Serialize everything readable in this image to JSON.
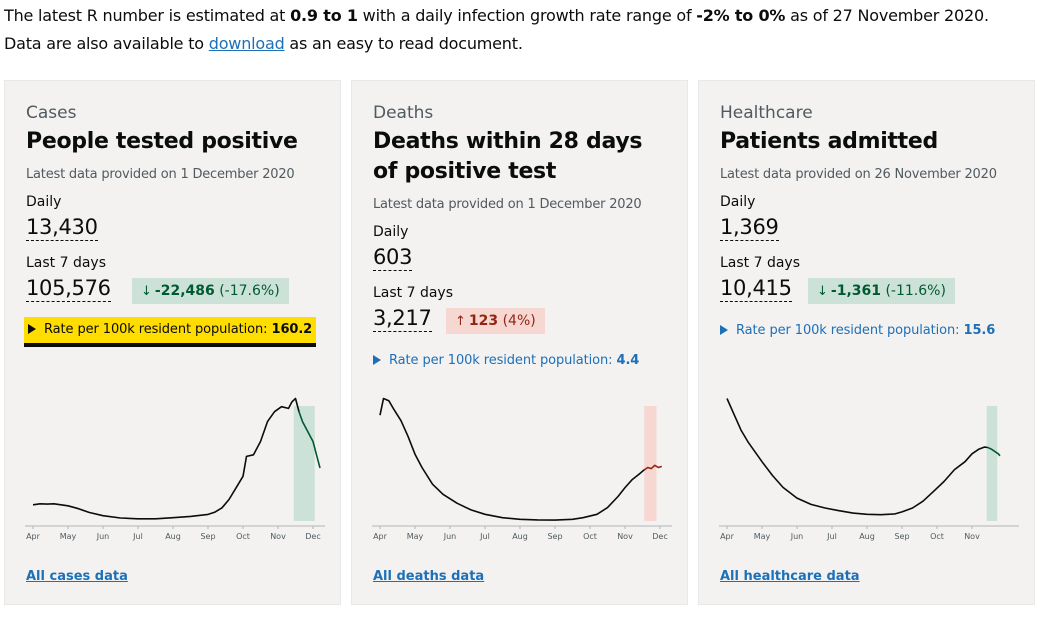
{
  "intro": {
    "line1_pre": "The latest R number is estimated at ",
    "r_value": "0.9 to 1",
    "line1_mid": " with a daily infection growth rate range of ",
    "growth_value": "-2% to 0%",
    "line1_post": " as of 27 November 2020.",
    "line2_pre": "Data are also available to ",
    "download_link": "download",
    "line2_post": " as an easy to read document."
  },
  "cards": [
    {
      "category": "Cases",
      "heading": "People tested positive",
      "latest": "Latest data provided on 1 December 2020",
      "daily_label": "Daily",
      "daily_value": "13,430",
      "week_label": "Last 7 days",
      "week_value": "105,576",
      "change_direction": "down",
      "change_arrow": "↓",
      "change_value": "-22,486",
      "change_pct": "(-17.6%)",
      "rate_label": "Rate per 100k resident population: ",
      "rate_value": "160.2",
      "footer_link": "All cases data",
      "line_color": "#0b0c0c",
      "recent_color": "#005a30",
      "band_color": "#cce2d8"
    },
    {
      "category": "Deaths",
      "heading": "Deaths within 28 days of positive test",
      "latest": "Latest data provided on 1 December 2020",
      "daily_label": "Daily",
      "daily_value": "603",
      "week_label": "Last 7 days",
      "week_value": "3,217",
      "change_direction": "up",
      "change_arrow": "↑",
      "change_value": "123",
      "change_pct": "(4%)",
      "rate_label": "Rate per 100k resident population: ",
      "rate_value": "4.4",
      "footer_link": "All deaths data",
      "line_color": "#0b0c0c",
      "recent_color": "#942514",
      "band_color": "#f6d7d2"
    },
    {
      "category": "Healthcare",
      "heading": "Patients admitted",
      "latest": "Latest data provided on 26 November 2020",
      "daily_label": "Daily",
      "daily_value": "1,369",
      "week_label": "Last 7 days",
      "week_value": "10,415",
      "change_direction": "down",
      "change_arrow": "↓",
      "change_value": "-1,361",
      "change_pct": "(-11.6%)",
      "rate_label": "Rate per 100k resident population: ",
      "rate_value": "15.6",
      "footer_link": "All healthcare data",
      "line_color": "#0b0c0c",
      "recent_color": "#005a30",
      "band_color": "#cce2d8"
    }
  ],
  "chart_data": [
    {
      "type": "line",
      "x_ticks": [
        "Apr",
        "May",
        "Jun",
        "Jul",
        "Aug",
        "Sep",
        "Oct",
        "Nov",
        "Dec"
      ],
      "series": [
        {
          "x": [
            0,
            0.2,
            0.4,
            0.6,
            0.8,
            1,
            1.3,
            1.6,
            2,
            2.5,
            3,
            3.5,
            4,
            4.5,
            5,
            5.2,
            5.4,
            5.6,
            5.8,
            6,
            6.1,
            6.3,
            6.5,
            6.7,
            6.9,
            7.1,
            7.3,
            7.4,
            7.5,
            7.6
          ],
          "y": [
            4900,
            5200,
            5100,
            5200,
            4900,
            4600,
            3700,
            2600,
            1600,
            900,
            650,
            650,
            1000,
            1400,
            2000,
            2700,
            4000,
            6500,
            10000,
            13500,
            19500,
            20000,
            24000,
            30000,
            33000,
            34500,
            34000,
            36000,
            37000,
            33000
          ]
        },
        {
          "x": [
            7.6,
            7.7,
            7.8,
            7.9,
            8,
            8.1,
            8.2
          ],
          "y": [
            33000,
            30000,
            28000,
            26000,
            24000,
            20000,
            16000
          ]
        }
      ],
      "highlight_range": [
        7.45,
        8.05
      ]
    },
    {
      "type": "line",
      "x_ticks": [
        "Apr",
        "May",
        "Jun",
        "Jul",
        "Aug",
        "Sep",
        "Oct",
        "Nov",
        "Dec"
      ],
      "series": [
        {
          "x": [
            0,
            0.1,
            0.25,
            0.4,
            0.6,
            0.8,
            1,
            1.2,
            1.5,
            1.8,
            2.2,
            2.6,
            3,
            3.5,
            4,
            4.5,
            5,
            5.5,
            5.8,
            6.2,
            6.5,
            6.8,
            7,
            7.2,
            7.4,
            7.55
          ],
          "y": [
            950,
            1100,
            1080,
            1000,
            900,
            760,
            600,
            480,
            330,
            240,
            160,
            100,
            60,
            30,
            15,
            10,
            8,
            15,
            30,
            60,
            120,
            220,
            300,
            370,
            420,
            460
          ]
        },
        {
          "x": [
            7.55,
            7.65,
            7.75,
            7.85,
            7.95,
            8.05
          ],
          "y": [
            460,
            480,
            470,
            500,
            480,
            490
          ]
        }
      ],
      "highlight_range": [
        7.55,
        7.9
      ]
    },
    {
      "type": "line",
      "x_ticks": [
        "Apr",
        "May",
        "Jun",
        "Jul",
        "Aug",
        "Sep",
        "Oct",
        "Nov"
      ],
      "series": [
        {
          "x": [
            0,
            0.2,
            0.4,
            0.6,
            0.8,
            1,
            1.3,
            1.6,
            2,
            2.4,
            2.8,
            3.2,
            3.6,
            4,
            4.4,
            4.8,
            5,
            5.3,
            5.6,
            5.9,
            6.2,
            6.5,
            6.8,
            7,
            7.2,
            7.35,
            7.45
          ],
          "y": [
            3100,
            2700,
            2300,
            2000,
            1750,
            1500,
            1150,
            850,
            580,
            420,
            330,
            260,
            200,
            170,
            160,
            180,
            230,
            330,
            500,
            750,
            1000,
            1300,
            1500,
            1700,
            1820,
            1870,
            1860
          ]
        },
        {
          "x": [
            7.45,
            7.55,
            7.65,
            7.75,
            7.8
          ],
          "y": [
            1860,
            1820,
            1760,
            1700,
            1650
          ]
        }
      ],
      "highlight_range": [
        7.42,
        7.72
      ]
    }
  ]
}
